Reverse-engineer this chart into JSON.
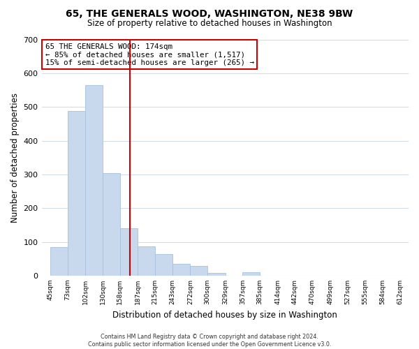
{
  "title": "65, THE GENERALS WOOD, WASHINGTON, NE38 9BW",
  "subtitle": "Size of property relative to detached houses in Washington",
  "xlabel": "Distribution of detached houses by size in Washington",
  "ylabel": "Number of detached properties",
  "bar_color": "#c8d9ee",
  "bar_edge_color": "#a8c0de",
  "vline_x": 174,
  "vline_color": "#cc0000",
  "annotation_line1": "65 THE GENERALS WOOD: 174sqm",
  "annotation_line2": "← 85% of detached houses are smaller (1,517)",
  "annotation_line3": "15% of semi-detached houses are larger (265) →",
  "annotation_box_color": "#ffffff",
  "annotation_box_edge": "#cc0000",
  "bins": [
    45,
    73,
    102,
    130,
    158,
    187,
    215,
    243,
    272,
    300,
    329,
    357,
    385,
    414,
    442,
    470,
    499,
    527,
    555,
    584,
    612
  ],
  "counts": [
    84,
    489,
    565,
    303,
    140,
    86,
    64,
    35,
    29,
    9,
    0,
    11,
    0,
    0,
    0,
    0,
    0,
    0,
    0,
    0
  ],
  "ylim": [
    0,
    700
  ],
  "yticks": [
    0,
    100,
    200,
    300,
    400,
    500,
    600,
    700
  ],
  "footer_line1": "Contains HM Land Registry data © Crown copyright and database right 2024.",
  "footer_line2": "Contains public sector information licensed under the Open Government Licence v3.0.",
  "background_color": "#ffffff",
  "grid_color": "#d0dce8"
}
